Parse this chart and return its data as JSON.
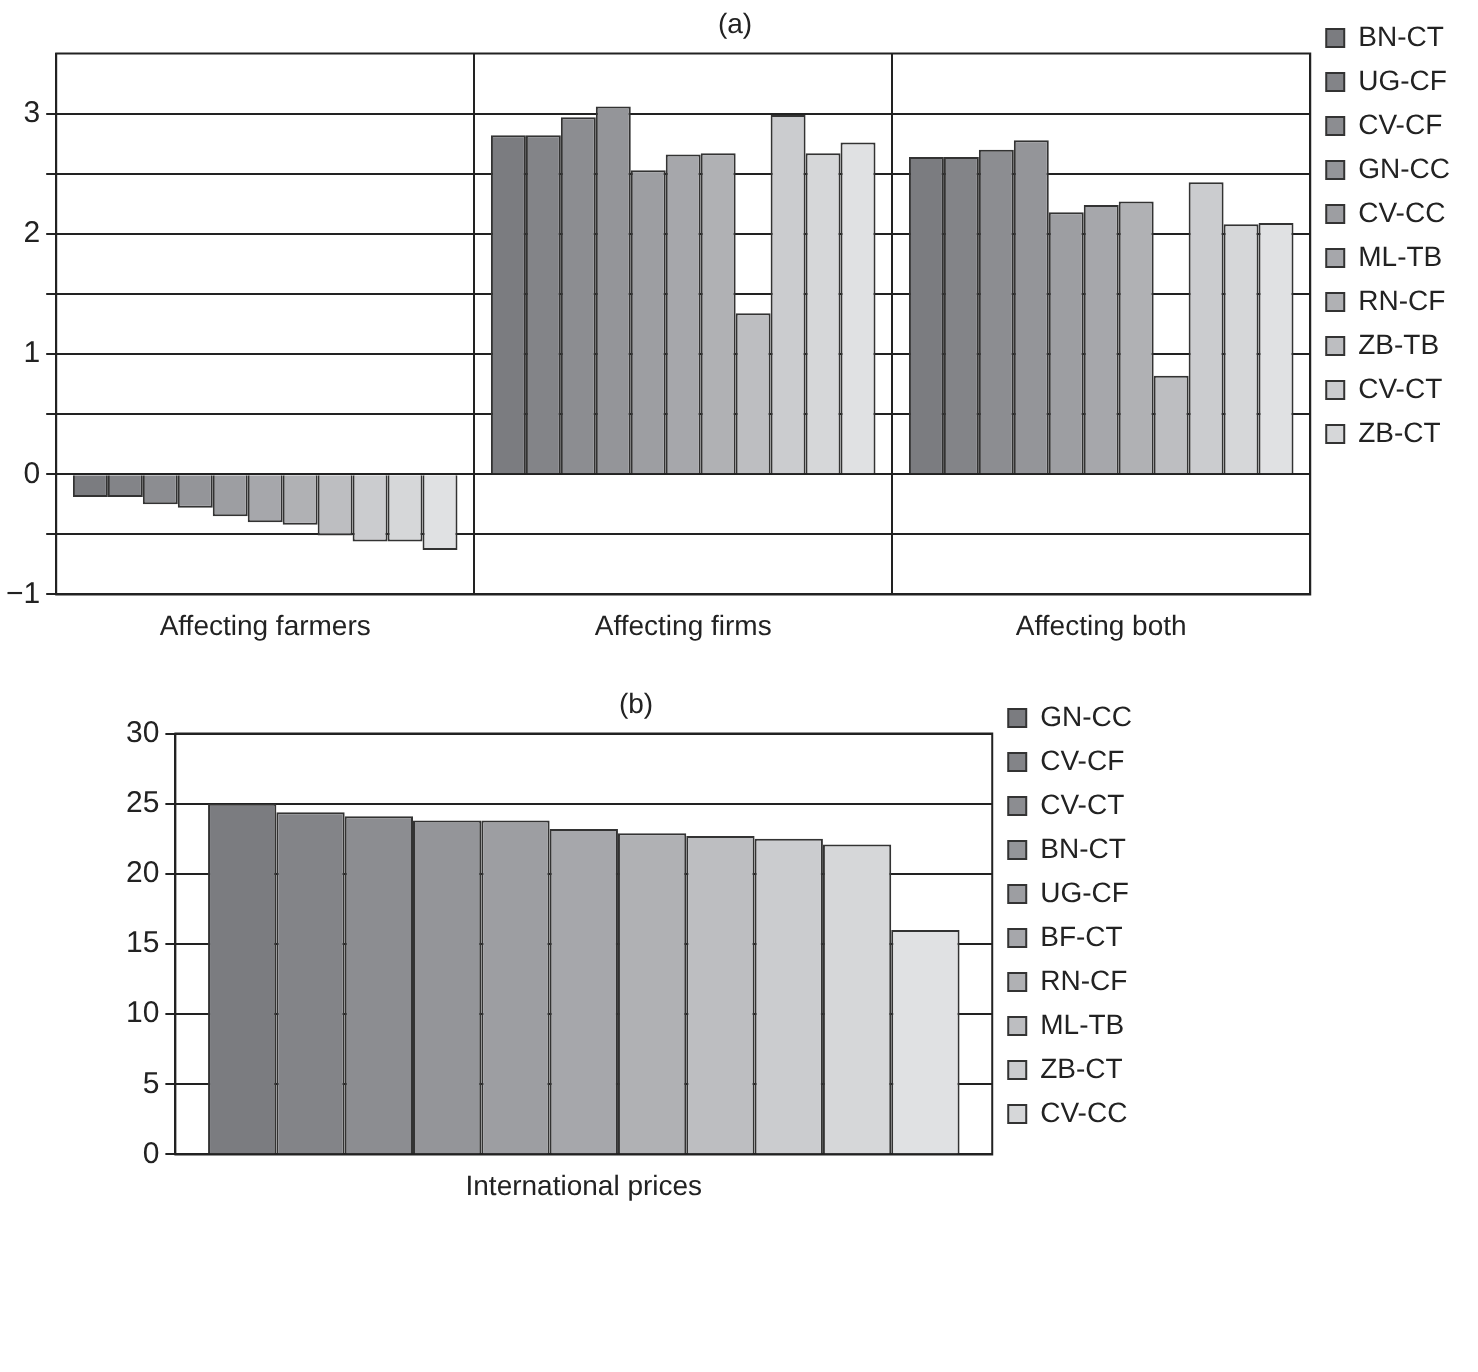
{
  "chart_data": [
    {
      "type": "bar",
      "title": "(a)",
      "categories": [
        "Affecting farmers",
        "Affecting firms",
        "Affecting both"
      ],
      "ylim": [
        -1,
        3.5
      ],
      "yticks": [
        -1,
        {
          "value": -0.5,
          "label": null
        },
        0,
        {
          "value": 0.5,
          "label": null
        },
        1,
        {
          "value": 1.5,
          "label": null
        },
        2,
        {
          "value": 2.5,
          "label": null
        },
        3
      ],
      "grid": true,
      "legend": "right",
      "series": [
        {
          "name": "BN-CT",
          "color": "#7b7c80",
          "values": [
            -0.19,
            2.82,
            2.64
          ]
        },
        {
          "name": "UG-CF",
          "color": "#838488",
          "values": [
            -0.19,
            2.82,
            2.64
          ]
        },
        {
          "name": "CV-CF",
          "color": "#8c8d91",
          "values": [
            -0.25,
            2.97,
            2.7
          ]
        },
        {
          "name": "GN-CC",
          "color": "#949599",
          "values": [
            -0.28,
            3.06,
            2.78
          ]
        },
        {
          "name": "CV-CC",
          "color": "#9d9ea2",
          "values": [
            -0.35,
            2.53,
            2.18
          ]
        },
        {
          "name": "ML-TB",
          "color": "#a6a7ab",
          "values": [
            -0.4,
            2.66,
            2.24
          ]
        },
        {
          "name": "RN-CF",
          "color": "#b0b1b4",
          "values": [
            -0.42,
            2.67,
            2.27
          ]
        },
        {
          "name": "ZB-TB",
          "color": "#bdbec1",
          "values": [
            -0.51,
            1.34,
            0.82
          ]
        },
        {
          "name": "CV-CT",
          "color": "#cbcccf",
          "values": [
            -0.56,
            2.99,
            2.43
          ]
        },
        {
          "name": "ZB-CT",
          "color": "#d6d7d9",
          "values": [
            -0.56,
            2.67,
            2.08
          ]
        },
        {
          "color": "#e0e1e3",
          "values": [
            -0.63,
            2.76,
            2.09
          ]
        }
      ]
    },
    {
      "type": "bar",
      "title": "(b)",
      "categories": [
        "International prices"
      ],
      "ylim": [
        0,
        30
      ],
      "yticks": [
        0,
        5,
        10,
        15,
        20,
        25,
        30
      ],
      "grid": "y",
      "legend": "right",
      "series": [
        {
          "name": "GN-CC",
          "color": "#7b7c80",
          "values": [
            25
          ]
        },
        {
          "name": "CV-CF",
          "color": "#838488",
          "values": [
            24.4
          ]
        },
        {
          "name": "CV-CT",
          "color": "#8c8d91",
          "values": [
            24.1
          ]
        },
        {
          "name": "BN-CT",
          "color": "#949599",
          "values": [
            23.8
          ]
        },
        {
          "name": "UG-CF",
          "color": "#9d9ea2",
          "values": [
            23.8
          ]
        },
        {
          "name": "BF-CT",
          "color": "#a6a7ab",
          "values": [
            23.2
          ]
        },
        {
          "name": "RN-CF",
          "color": "#b0b1b4",
          "values": [
            22.9
          ]
        },
        {
          "name": "ML-TB",
          "color": "#bdbec1",
          "values": [
            22.7
          ]
        },
        {
          "name": "ZB-CT",
          "color": "#cbcccf",
          "values": [
            22.5
          ]
        },
        {
          "name": "CV-CC",
          "color": "#d6d7d9",
          "values": [
            22.1
          ]
        },
        {
          "color": "#e0e1e3",
          "values": [
            16
          ]
        }
      ]
    }
  ]
}
